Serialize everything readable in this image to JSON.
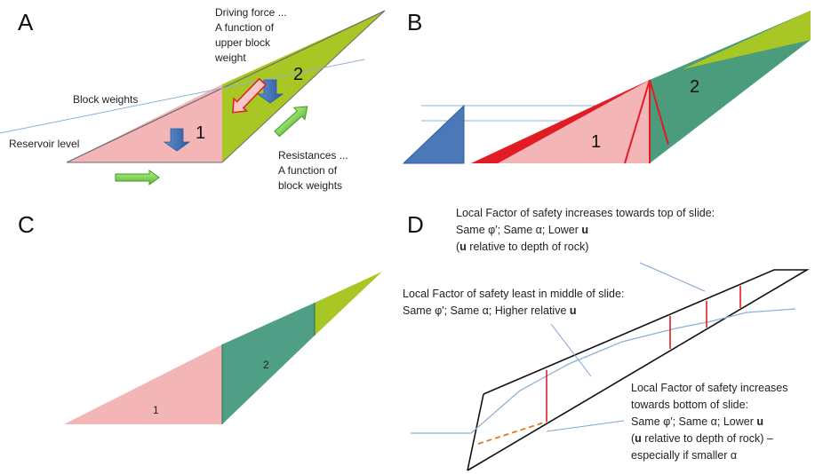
{
  "colors": {
    "pink": "#f4b5b7",
    "lime": "#a8c724",
    "teal": "#4a9c7c",
    "teal_c": "#4e9f86",
    "red": "#e11c24",
    "blue_arrow": "#4a78b8",
    "green_arrow": "#7bd04a",
    "water_line": "#8fb0d6"
  },
  "panelA": {
    "letter": "A",
    "driving_force": [
      "Driving force ...",
      "A function of",
      "upper block",
      "weight"
    ],
    "block_weights": "Block weights",
    "reservoir_level": "Reservoir level",
    "resistances": [
      "Resistances ...",
      "A function of",
      "block weights"
    ],
    "block1": "1",
    "block2": "2"
  },
  "panelB": {
    "letter": "B",
    "block1": "1",
    "block2": "2"
  },
  "panelC": {
    "letter": "C",
    "block1": "1",
    "block2": "2"
  },
  "panelD": {
    "letter": "D",
    "top_note": {
      "title": "Local Factor of safety increases towards top of slide:",
      "line2": "Same φ′;  Same α;  Lower ",
      "line2_bold": "u",
      "line3_bold": "u",
      "line3": " relative to depth of rock)",
      "line3_prefix": "("
    },
    "middle_note": {
      "title": "Local Factor of safety least in middle of slide:",
      "line2": "Same φ′;  Same α;  Higher relative ",
      "line2_bold": "u"
    },
    "bottom_note": {
      "title": "Local Factor of safety increases",
      "line2": "towards bottom of slide:",
      "line3": "Same φ′;  Same α;  Lower ",
      "line3_bold": "u",
      "line4_prefix": "(",
      "line4_bold": "u",
      "line4": " relative to depth of rock) –",
      "line5": "especially if smaller α"
    }
  }
}
